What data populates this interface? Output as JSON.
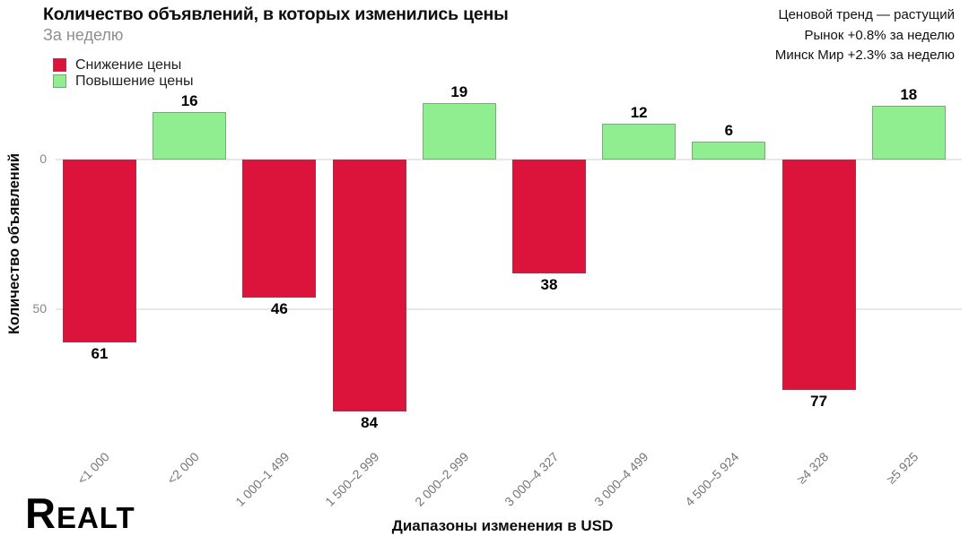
{
  "chart_data": {
    "type": "bar",
    "title": "Количество объявлений, в которых изменились цены",
    "subtitle": "За неделю",
    "xlabel": "Диапазоны изменения в USD",
    "ylabel": "Количество объявлений",
    "yticks": [
      0,
      50
    ],
    "grid": "horizontal",
    "legend_position": "top-left",
    "orientation_note": "decrease bars plotted downward from zero line, increase bars upward; y axis counts increase downward",
    "colors": {
      "decrease": "#dc143c",
      "increase": "#90ee90",
      "gridline": "#e8e8e8",
      "tick_text": "#888888"
    },
    "legend": [
      {
        "key": "decrease",
        "label": "Снижение цены"
      },
      {
        "key": "increase",
        "label": "Повышение цены"
      }
    ],
    "bars": [
      {
        "category": "<1 000",
        "value": 61,
        "kind": "decrease"
      },
      {
        "category": "<2 000",
        "value": 16,
        "kind": "increase"
      },
      {
        "category": "1 000–1 499",
        "value": 46,
        "kind": "decrease"
      },
      {
        "category": "1 500–2 999",
        "value": 84,
        "kind": "decrease"
      },
      {
        "category": "2 000–2 999",
        "value": 19,
        "kind": "increase"
      },
      {
        "category": "3 000–4 327",
        "value": 38,
        "kind": "decrease"
      },
      {
        "category": "3 000–4 499",
        "value": 12,
        "kind": "increase"
      },
      {
        "category": "4 500–5 924",
        "value": 6,
        "kind": "increase"
      },
      {
        "category": "≥4 328",
        "value": 77,
        "kind": "decrease"
      },
      {
        "category": "≥5 925",
        "value": 18,
        "kind": "increase"
      }
    ]
  },
  "annotation": {
    "lines": [
      "Ценовой тренд — растущий",
      "Рынок +0.8% за неделю",
      "Минск Мир +2.3% за неделю"
    ]
  },
  "logo": {
    "text": "Realt"
  }
}
